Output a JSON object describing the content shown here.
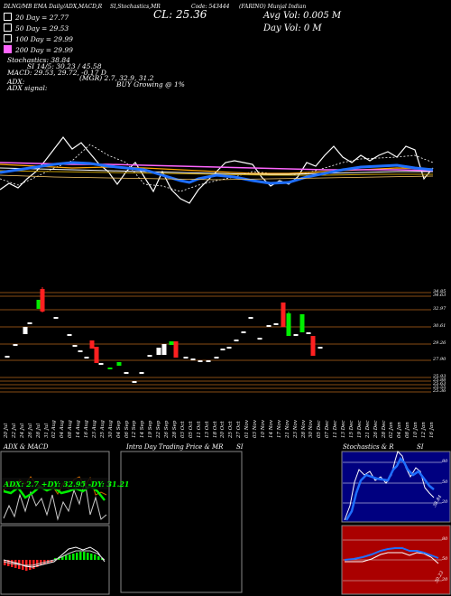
{
  "header": {
    "line": "DLNG/MB EMA Daily/ADX,MACD,R",
    "line2": "SI,Stochastics,MR",
    "cl_label": "CL: 25.36",
    "code": "Code: 543444",
    "name": "(FARINO) Munjal Indian",
    "avg_vol": "Avg Vol: 0.005 M",
    "day_vol": "Day Vol: 0   M"
  },
  "legend": [
    {
      "label": "20  Day = 27.77",
      "color": "#ffffff"
    },
    {
      "label": "50  Day = 29.53",
      "color": "#ffa500"
    },
    {
      "label": "100  Day = 29.99",
      "color": "#ffffff"
    },
    {
      "label": "200  Day = 29.99",
      "color": "#ff66ff"
    }
  ],
  "indicators": {
    "stoch": "Stochastics: 38.84",
    "si": "SI 14/5: 30.23 / 45.58",
    "macd": "MACD: 29.53,  29.72, -0.17 D",
    "adx": "ADX:",
    "adx_val": "(MGR) 2.7,  32.9,  31.2",
    "adx_signal": "ADX  signal:",
    "buy": "BUY Growing @ 1%"
  },
  "price_levels": [
    "34.85",
    "34.63",
    "32.97",
    "30.61",
    "29.26",
    "27.90",
    "25.93",
    "25.88",
    "25.63",
    "25.55",
    "25.36"
  ],
  "dates": [
    "20 Jul",
    "22 Jul",
    "24 Jul",
    "26 Jul",
    "28 Jul",
    "31 Jul",
    "02 Aug",
    "04 Aug",
    "08 Aug",
    "14 Aug",
    "16 Aug",
    "23 Aug",
    "25 Aug",
    "30 Aug",
    "04 Sep",
    "06 Sep",
    "12 Sep",
    "14 Sep",
    "19 Sep",
    "22 Sep",
    "26 Sep",
    "28 Sep",
    "03 Oct",
    "05 Oct",
    "11 Oct",
    "13 Oct",
    "18 Oct",
    "20 Oct",
    "25 Oct",
    "27 Oct",
    "01 Nov",
    "03 Nov",
    "10 Nov",
    "14 Nov",
    "17 Nov",
    "21 Nov",
    "23 Nov",
    "28 Nov",
    "30 Nov",
    "05 Dec",
    "07 Dec",
    "11 Dec",
    "13 Dec",
    "15 Dec",
    "19 Dec",
    "21 Dec",
    "26 Dec",
    "28 Dec",
    "02 Jan",
    "04 Jan",
    "08 Jan",
    "10 Jan",
    "12 Jan",
    "16 Jan"
  ],
  "panels": {
    "adx_macd": {
      "title": "ADX  & MACD",
      "legend": "ADX: 2.7 +DY: 32.95 -DY: 31.21"
    },
    "intraday": {
      "title": "Intra  Day Trading Price  & MR",
      "title_right": "SI"
    },
    "stoch": {
      "title": "Stochastics & R",
      "title_right": "SI",
      "ticks": [
        "80",
        "50",
        "20"
      ],
      "value": "38.84"
    },
    "rsi": {
      "ticks": [
        "80",
        "50",
        "20"
      ],
      "value": "30.23"
    }
  },
  "colors": {
    "green": "#00ee00",
    "red": "#ff2020",
    "blue": "#1f6fff",
    "orange": "#cc6600",
    "gold": "#c8a000"
  },
  "chart_data": {
    "type": "line",
    "series": [
      {
        "name": "Candle close",
        "values": [
          31.8,
          30.3,
          29.3,
          28.5,
          35.2,
          34.5,
          31.2,
          31.4,
          29.8,
          29.0,
          29.4,
          28.8,
          27.7,
          26.6,
          26.9,
          25.8,
          25.9,
          26.4,
          26.5,
          27.8,
          28.5,
          29.4,
          29.7,
          28.6,
          28.1,
          28.1,
          28.4,
          28.6,
          28.7,
          29.8,
          31.5,
          31.8,
          32.3,
          34.5,
          31.2,
          32.3,
          30.4,
          31.0,
          28.6
        ]
      },
      {
        "name": "20 Day",
        "values": [
          27.77
        ]
      },
      {
        "name": "50 Day",
        "values": [
          29.53
        ]
      }
    ]
  }
}
